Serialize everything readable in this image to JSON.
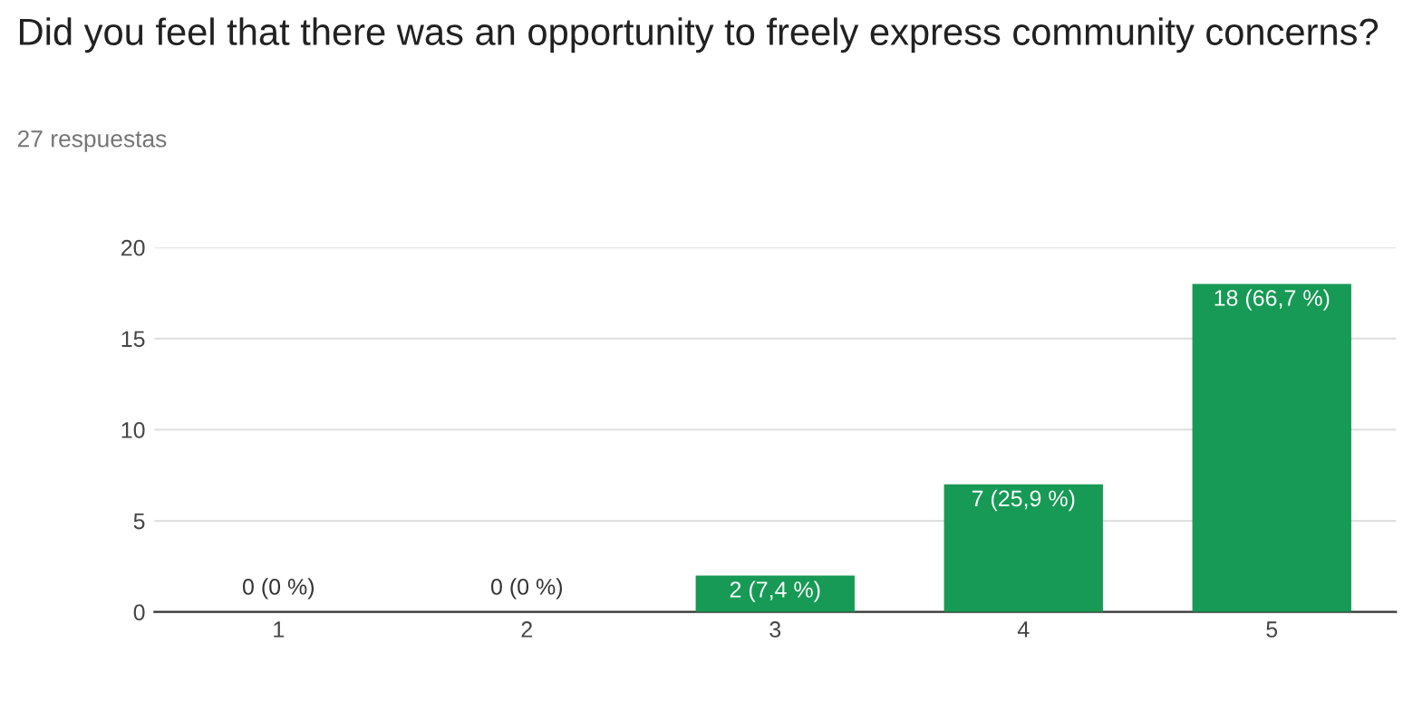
{
  "chart_data": {
    "type": "bar",
    "title": "Did you feel that there was an opportunity to freely express community concerns?",
    "subtitle": "27 respuestas",
    "categories": [
      "1",
      "2",
      "3",
      "4",
      "5"
    ],
    "values": [
      0,
      0,
      2,
      7,
      18
    ],
    "value_labels": [
      "0 (0 %)",
      "0 (0 %)",
      "2 (7,4 %)",
      "7 (25,9 %)",
      "18 (66,7 %)"
    ],
    "color": "#169a55",
    "ylim": [
      0,
      20
    ],
    "yticks": [
      0,
      5,
      10,
      15,
      20
    ],
    "grid": "y",
    "legend": false
  }
}
